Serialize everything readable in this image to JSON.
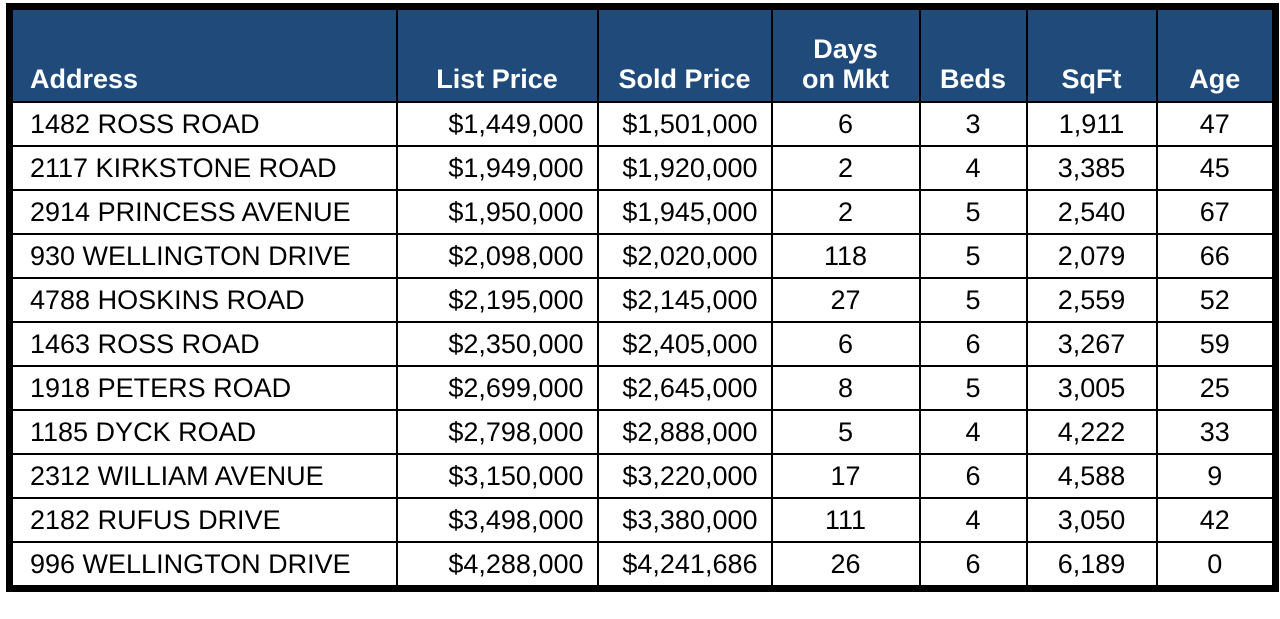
{
  "colors": {
    "header_bg": "#1f4a7a",
    "header_text": "#ffffff",
    "border": "#000000",
    "body_text": "#000000",
    "row_bg": "#ffffff"
  },
  "table": {
    "name": "comparable-home-sales",
    "columns": [
      {
        "id": "address",
        "label": "Address",
        "align": "left"
      },
      {
        "id": "list-price",
        "label": "List Price",
        "align": "right"
      },
      {
        "id": "sold-price",
        "label": "Sold Price",
        "align": "right"
      },
      {
        "id": "days-on-mkt",
        "label": "Days on Mkt",
        "label_lines": [
          "Days",
          "on Mkt"
        ],
        "align": "center"
      },
      {
        "id": "beds",
        "label": "Beds",
        "align": "center"
      },
      {
        "id": "sqft",
        "label": "SqFt",
        "align": "center"
      },
      {
        "id": "age",
        "label": "Age",
        "align": "center"
      }
    ],
    "rows": [
      [
        "1482 ROSS ROAD",
        "$1,449,000",
        "$1,501,000",
        "6",
        "3",
        "1,911",
        "47"
      ],
      [
        "2117 KIRKSTONE ROAD",
        "$1,949,000",
        "$1,920,000",
        "2",
        "4",
        "3,385",
        "45"
      ],
      [
        "2914 PRINCESS AVENUE",
        "$1,950,000",
        "$1,945,000",
        "2",
        "5",
        "2,540",
        "67"
      ],
      [
        "930 WELLINGTON DRIVE",
        "$2,098,000",
        "$2,020,000",
        "118",
        "5",
        "2,079",
        "66"
      ],
      [
        "4788 HOSKINS ROAD",
        "$2,195,000",
        "$2,145,000",
        "27",
        "5",
        "2,559",
        "52"
      ],
      [
        "1463 ROSS ROAD",
        "$2,350,000",
        "$2,405,000",
        "6",
        "6",
        "3,267",
        "59"
      ],
      [
        "1918 PETERS ROAD",
        "$2,699,000",
        "$2,645,000",
        "8",
        "5",
        "3,005",
        "25"
      ],
      [
        "1185 DYCK ROAD",
        "$2,798,000",
        "$2,888,000",
        "5",
        "4",
        "4,222",
        "33"
      ],
      [
        "2312 WILLIAM AVENUE",
        "$3,150,000",
        "$3,220,000",
        "17",
        "6",
        "4,588",
        "9"
      ],
      [
        "2182 RUFUS DRIVE",
        "$3,498,000",
        "$3,380,000",
        "111",
        "4",
        "3,050",
        "42"
      ],
      [
        "996 WELLINGTON DRIVE",
        "$4,288,000",
        "$4,241,686",
        "26",
        "6",
        "6,189",
        "0"
      ]
    ]
  },
  "chart_data": {
    "type": "table",
    "title": "",
    "columns": [
      "Address",
      "List Price",
      "Sold Price",
      "Days on Mkt",
      "Beds",
      "SqFt",
      "Age"
    ],
    "rows": [
      [
        "1482 ROSS ROAD",
        "$1,449,000",
        "$1,501,000",
        "6",
        "3",
        "1,911",
        "47"
      ],
      [
        "2117 KIRKSTONE ROAD",
        "$1,949,000",
        "$1,920,000",
        "2",
        "4",
        "3,385",
        "45"
      ],
      [
        "2914 PRINCESS AVENUE",
        "$1,950,000",
        "$1,945,000",
        "2",
        "5",
        "2,540",
        "67"
      ],
      [
        "930 WELLINGTON DRIVE",
        "$2,098,000",
        "$2,020,000",
        "118",
        "5",
        "2,079",
        "66"
      ],
      [
        "4788 HOSKINS ROAD",
        "$2,195,000",
        "$2,145,000",
        "27",
        "5",
        "2,559",
        "52"
      ],
      [
        "1463 ROSS ROAD",
        "$2,350,000",
        "$2,405,000",
        "6",
        "6",
        "3,267",
        "59"
      ],
      [
        "1918 PETERS ROAD",
        "$2,699,000",
        "$2,645,000",
        "8",
        "5",
        "3,005",
        "25"
      ],
      [
        "1185 DYCK ROAD",
        "$2,798,000",
        "$2,888,000",
        "5",
        "4",
        "4,222",
        "33"
      ],
      [
        "2312 WILLIAM AVENUE",
        "$3,150,000",
        "$3,220,000",
        "17",
        "6",
        "4,588",
        "9"
      ],
      [
        "2182 RUFUS DRIVE",
        "$3,498,000",
        "$3,380,000",
        "111",
        "4",
        "3,050",
        "42"
      ],
      [
        "996 WELLINGTON DRIVE",
        "$4,288,000",
        "$4,241,686",
        "26",
        "6",
        "6,189",
        "0"
      ]
    ]
  }
}
